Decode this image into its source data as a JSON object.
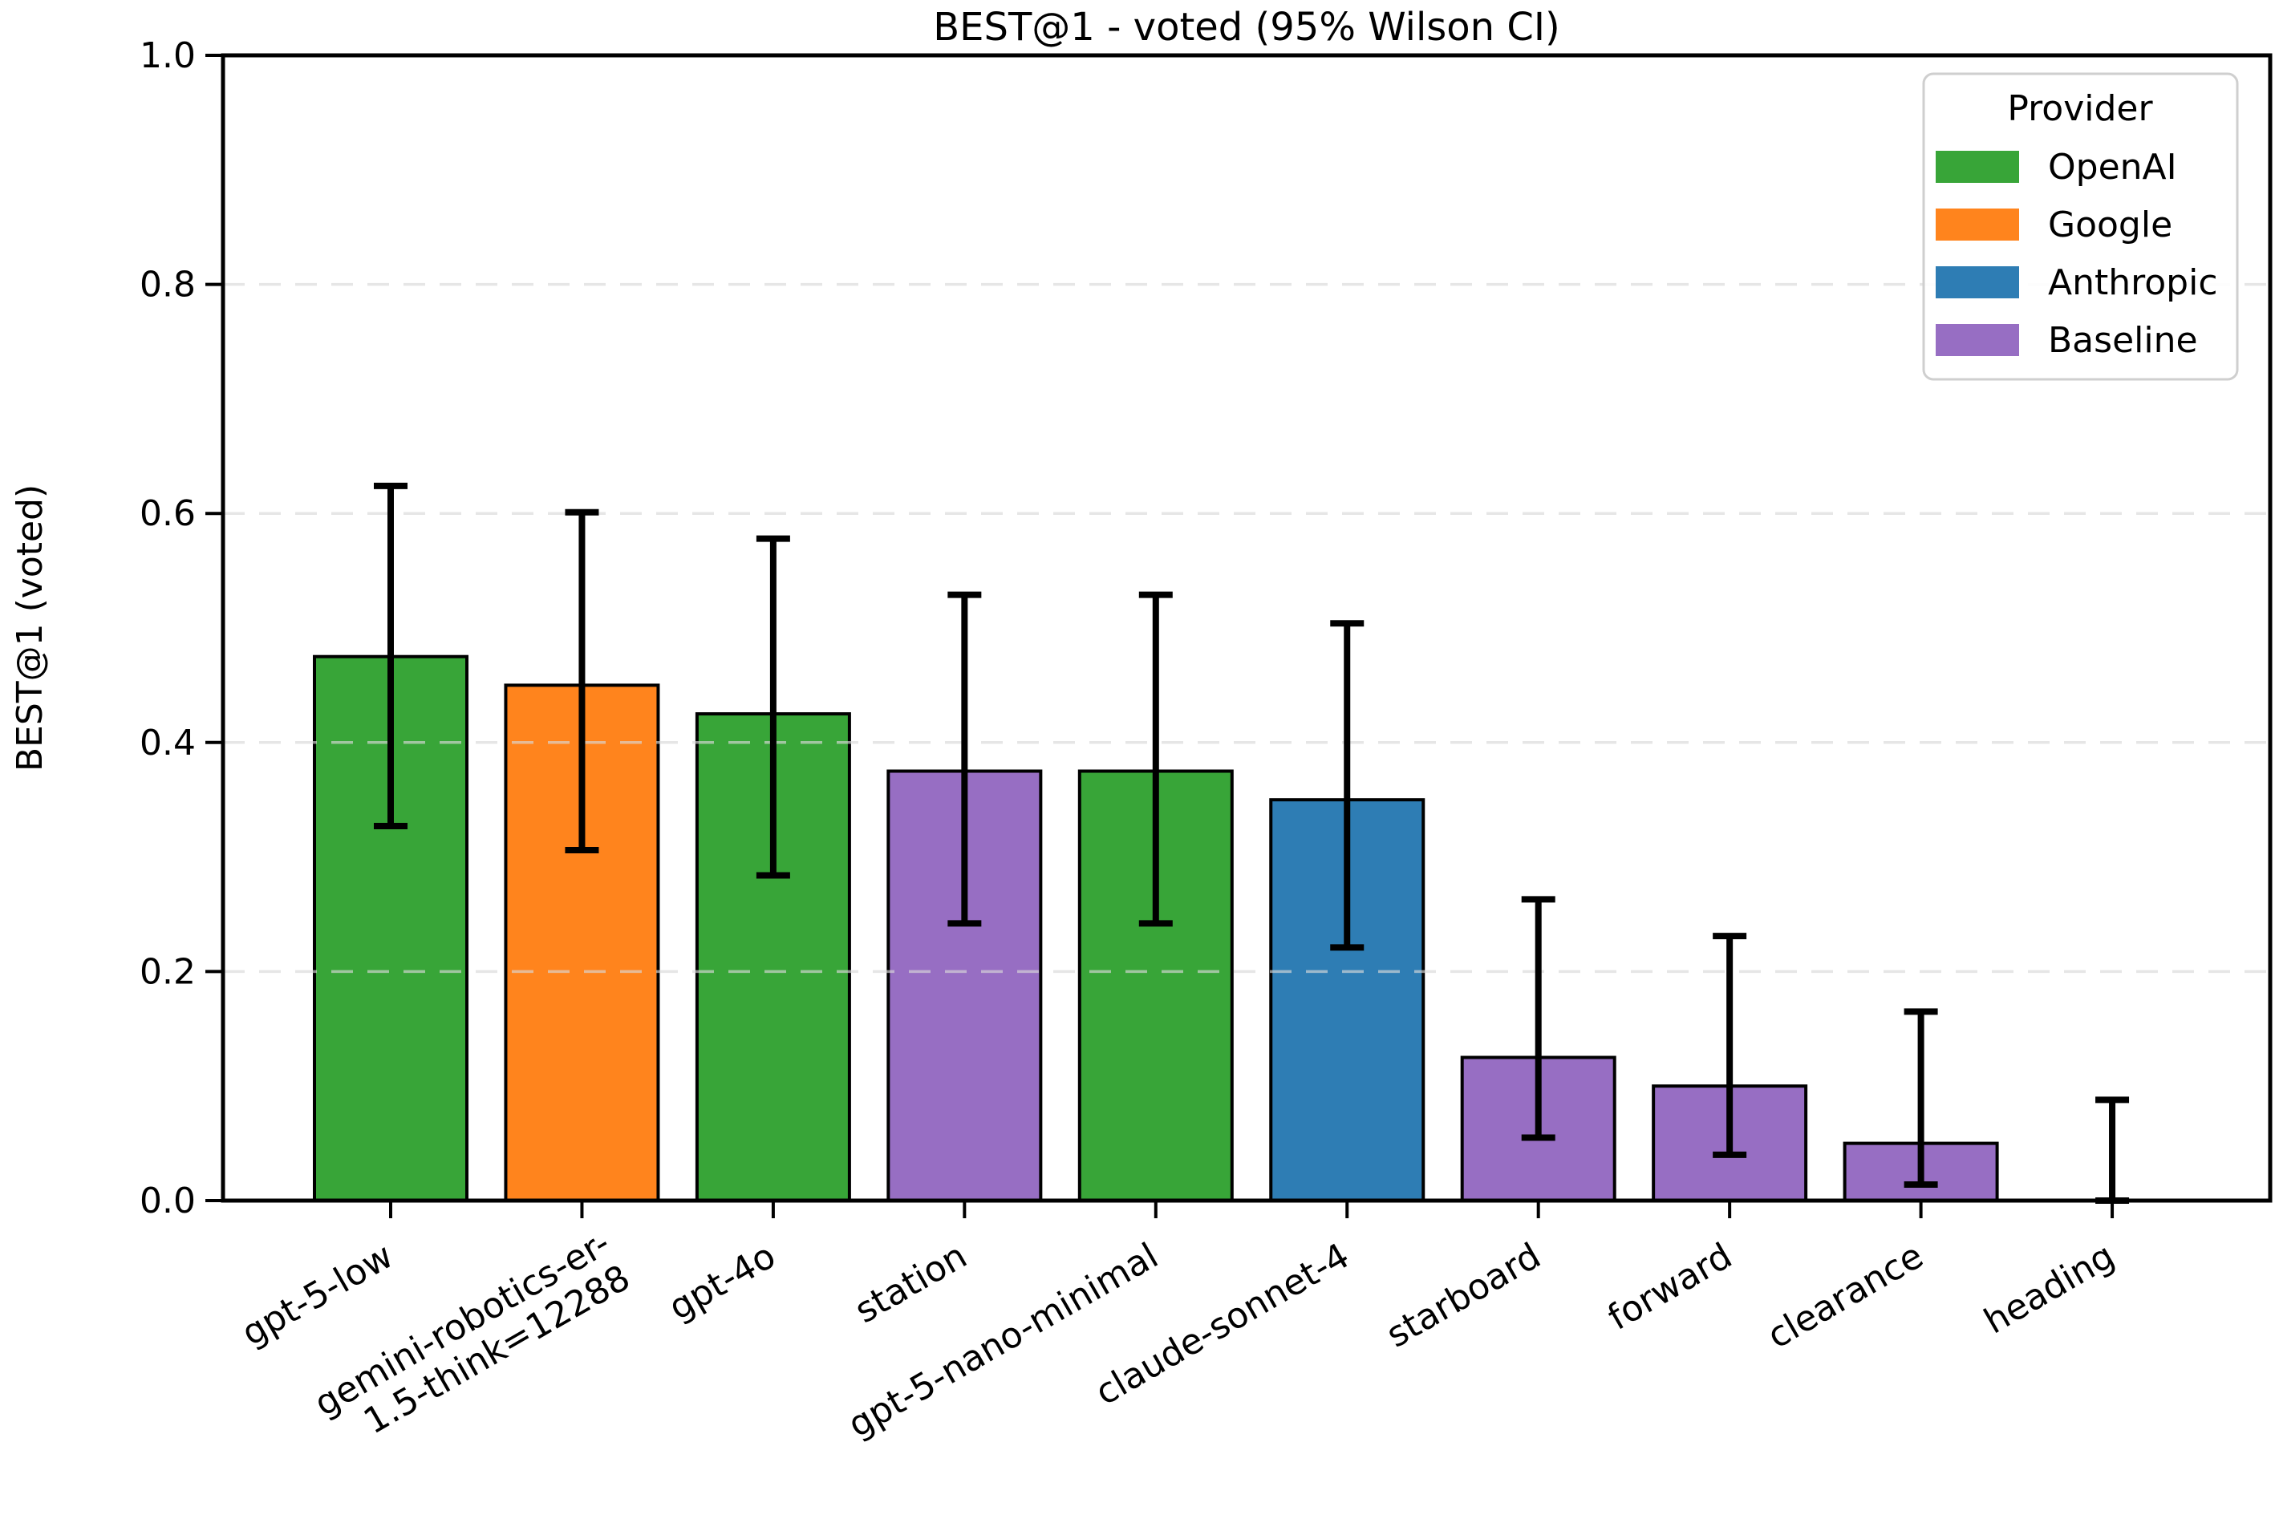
{
  "chart_data": {
    "type": "bar",
    "title": "BEST@1 - voted (95% Wilson CI)",
    "ylabel": "BEST@1 (voted)",
    "xlabel": "",
    "ylim": [
      0.0,
      1.0
    ],
    "ytick_labels": [
      "0.0",
      "0.2",
      "0.4",
      "0.6",
      "0.8",
      "1.0"
    ],
    "ytick_values": [
      0.0,
      0.2,
      0.4,
      0.6,
      0.8,
      1.0
    ],
    "gridline_values": [
      0.2,
      0.4,
      0.6,
      0.8
    ],
    "grid": "horizontal-dashed",
    "bar_edge_color": "#000000",
    "error_bar_color": "#000000",
    "x_label_rotation_deg": 30,
    "legend": {
      "title": "Provider",
      "position": "upper right",
      "entries": [
        {
          "label": "OpenAI",
          "color": "#38a538"
        },
        {
          "label": "Google",
          "color": "#ff841d"
        },
        {
          "label": "Anthropic",
          "color": "#2e7db4"
        },
        {
          "label": "Baseline",
          "color": "#976ec3"
        }
      ]
    },
    "bars": [
      {
        "label": "gpt-5-low",
        "label_lines": [
          "gpt-5-low"
        ],
        "provider": "OpenAI",
        "value": 0.475,
        "ci_low": 0.327,
        "ci_high": 0.624
      },
      {
        "label": "gemini-robotics-er-1.5-think=12288",
        "label_lines": [
          "gemini-robotics-er-",
          "1.5-think=12288"
        ],
        "provider": "Google",
        "value": 0.45,
        "ci_low": 0.306,
        "ci_high": 0.601
      },
      {
        "label": "gpt-4o",
        "label_lines": [
          "gpt-4o"
        ],
        "provider": "OpenAI",
        "value": 0.425,
        "ci_low": 0.284,
        "ci_high": 0.578
      },
      {
        "label": "station",
        "label_lines": [
          "station"
        ],
        "provider": "Baseline",
        "value": 0.375,
        "ci_low": 0.242,
        "ci_high": 0.529
      },
      {
        "label": "gpt-5-nano-minimal",
        "label_lines": [
          "gpt-5-nano-minimal"
        ],
        "provider": "OpenAI",
        "value": 0.375,
        "ci_low": 0.242,
        "ci_high": 0.529
      },
      {
        "label": "claude-sonnet-4",
        "label_lines": [
          "claude-sonnet-4"
        ],
        "provider": "Anthropic",
        "value": 0.35,
        "ci_low": 0.221,
        "ci_high": 0.504
      },
      {
        "label": "starboard",
        "label_lines": [
          "starboard"
        ],
        "provider": "Baseline",
        "value": 0.125,
        "ci_low": 0.055,
        "ci_high": 0.263
      },
      {
        "label": "forward",
        "label_lines": [
          "forward"
        ],
        "provider": "Baseline",
        "value": 0.1,
        "ci_low": 0.04,
        "ci_high": 0.231
      },
      {
        "label": "clearance",
        "label_lines": [
          "clearance"
        ],
        "provider": "Baseline",
        "value": 0.05,
        "ci_low": 0.014,
        "ci_high": 0.165
      },
      {
        "label": "heading",
        "label_lines": [
          "heading"
        ],
        "provider": "Baseline",
        "value": 0.0,
        "ci_low": 0.0,
        "ci_high": 0.088
      }
    ]
  }
}
